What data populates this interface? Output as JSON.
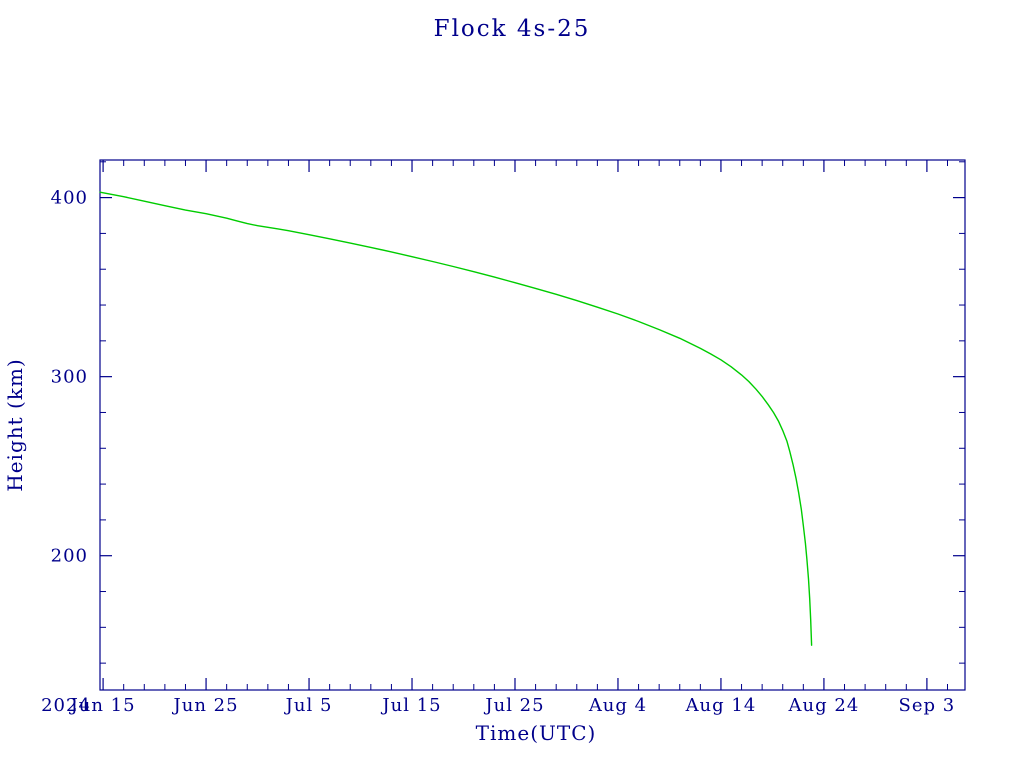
{
  "chart_data": {
    "type": "line",
    "title": "Flock 4s-25",
    "xlabel": "Time(UTC)",
    "ylabel": "Height (km)",
    "x_axis_year": "2024",
    "x_tick_labels": [
      "Jun 15",
      "Jun 25",
      "Jul 5",
      "Jul 15",
      "Jul 25",
      "Aug 4",
      "Aug 14",
      "Aug 24",
      "Sep 3"
    ],
    "x_tick_positions_days": [
      0,
      10,
      20,
      30,
      40,
      50,
      60,
      70,
      80
    ],
    "x_minor_tick_step_days": 2,
    "y_tick_labels": [
      "200",
      "300",
      "400"
    ],
    "y_tick_values": [
      200,
      300,
      400
    ],
    "y_minor_tick_step": 20,
    "xlim_days": [
      -0.3,
      83.7
    ],
    "ylim": [
      125,
      421
    ],
    "grid": false,
    "legend": "none",
    "axis_color": "#00008b",
    "line_color": "#00cc00",
    "background_color": "#ffffff",
    "series": [
      {
        "name": "Flock 4s-25 height",
        "x_unit": "days since first x tick (2024 Jun 15)",
        "points": [
          [
            -0.3,
            403
          ],
          [
            2,
            400.5
          ],
          [
            4,
            398
          ],
          [
            6,
            395.5
          ],
          [
            8,
            393
          ],
          [
            10,
            391
          ],
          [
            12,
            388.5
          ],
          [
            13,
            387
          ],
          [
            14,
            385.5
          ],
          [
            15,
            384.3
          ],
          [
            16,
            383.4
          ],
          [
            17,
            382.5
          ],
          [
            18,
            381.5
          ],
          [
            20,
            379.3
          ],
          [
            22,
            377
          ],
          [
            24,
            374.6
          ],
          [
            26,
            372.2
          ],
          [
            28,
            369.7
          ],
          [
            30,
            367
          ],
          [
            32,
            364.3
          ],
          [
            34,
            361.5
          ],
          [
            36,
            358.6
          ],
          [
            38,
            355.6
          ],
          [
            40,
            352.5
          ],
          [
            42,
            349.3
          ],
          [
            44,
            346
          ],
          [
            46,
            342.5
          ],
          [
            48,
            338.8
          ],
          [
            50,
            335
          ],
          [
            52,
            330.8
          ],
          [
            54,
            326.3
          ],
          [
            56,
            321.4
          ],
          [
            58,
            315.8
          ],
          [
            59,
            312.7
          ],
          [
            60,
            309.4
          ],
          [
            61,
            305.5
          ],
          [
            62,
            301
          ],
          [
            62.7,
            297.3
          ],
          [
            63.4,
            293
          ],
          [
            64,
            289
          ],
          [
            64.6,
            284.3
          ],
          [
            65.1,
            280
          ],
          [
            65.6,
            275
          ],
          [
            66,
            270
          ],
          [
            66.4,
            264
          ],
          [
            66.7,
            258
          ],
          [
            67,
            251
          ],
          [
            67.3,
            243
          ],
          [
            67.55,
            235
          ],
          [
            67.8,
            226
          ],
          [
            68,
            217
          ],
          [
            68.2,
            207
          ],
          [
            68.35,
            198
          ],
          [
            68.5,
            187
          ],
          [
            68.62,
            176
          ],
          [
            68.72,
            164
          ],
          [
            68.8,
            150
          ]
        ]
      }
    ]
  }
}
